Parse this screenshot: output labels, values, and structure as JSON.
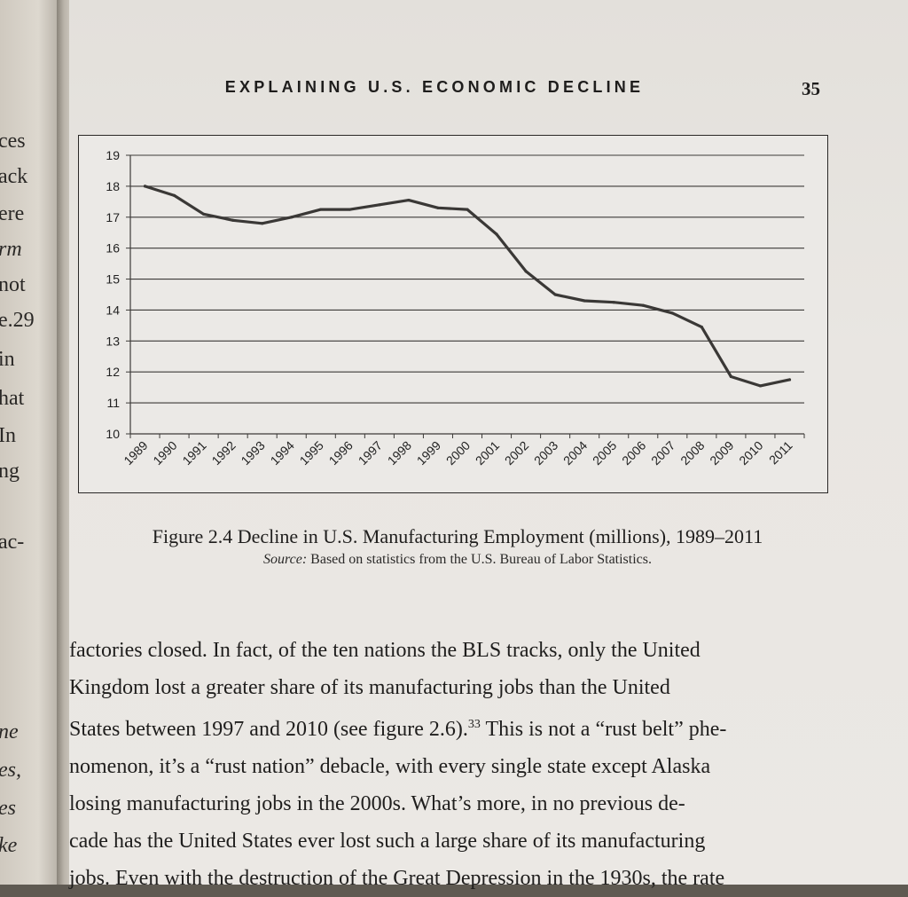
{
  "header": {
    "running_head": "EXPLAINING U.S. ECONOMIC DECLINE",
    "page_number": "35"
  },
  "left_page_fragments": [
    "ces",
    "ack",
    "ere",
    "rm",
    "not",
    "e.29",
    "in",
    "hat",
    "In",
    "ng",
    "ac-",
    "ne",
    "es,",
    "es",
    "ke"
  ],
  "figure": {
    "caption": "Figure 2.4 Decline in U.S. Manufacturing Employment (millions), 1989–2011",
    "source_label": "Source:",
    "source_text": "Based on statistics from the U.S. Bureau of Labor Statistics."
  },
  "chart_data": {
    "type": "line",
    "x": [
      "1989",
      "1990",
      "1991",
      "1992",
      "1993",
      "1994",
      "1995",
      "1996",
      "1997",
      "1998",
      "1999",
      "2000",
      "2001",
      "2002",
      "2003",
      "2004",
      "2005",
      "2006",
      "2007",
      "2008",
      "2009",
      "2010",
      "2011"
    ],
    "series": [
      {
        "values": [
          18.0,
          17.7,
          17.1,
          16.9,
          16.8,
          17.0,
          17.25,
          17.25,
          17.4,
          17.55,
          17.3,
          17.25,
          16.45,
          15.25,
          14.5,
          14.3,
          14.25,
          14.15,
          13.9,
          13.45,
          11.85,
          11.55,
          11.75
        ]
      }
    ],
    "y_ticks": [
      "10",
      "11",
      "12",
      "13",
      "14",
      "15",
      "16",
      "17",
      "18",
      "19"
    ],
    "ylim": [
      10,
      19
    ],
    "grid": true,
    "line_color": "#3a3836",
    "grid_color": "#3c3a38"
  },
  "body": {
    "lines": [
      "factories closed. In fact, of the ten nations the BLS tracks, only the United",
      "Kingdom lost a greater share of its manufacturing jobs than the United",
      "States between 1997 and 2010 (see figure 2.6).",
      "nomenon, it’s a “rust nation” debacle, with every single state except Alaska",
      "losing manufacturing jobs in the 2000s. What’s more, in no previous de-",
      "cade has the United States ever lost such a large share of its manufacturing",
      "jobs. Even with the destruction of the Great Depression in the 1930s, the rate"
    ],
    "footnote_ref": "33",
    "line3_continuation": " This is not a “rust belt” phe-"
  }
}
